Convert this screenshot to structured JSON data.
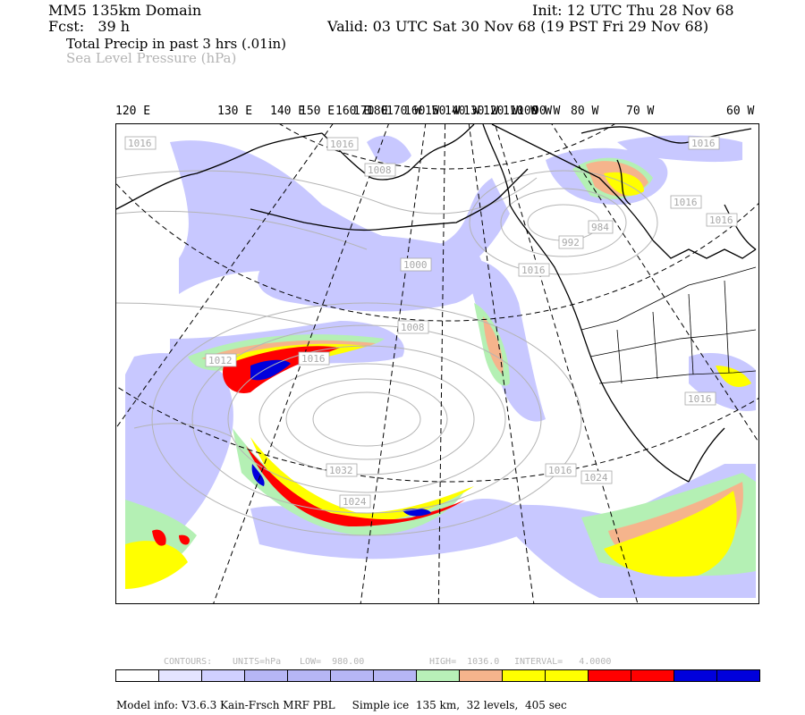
{
  "header": {
    "domain": "MM5 135km Domain",
    "init": "Init: 12 UTC Thu 28 Nov 68",
    "fcst": "Fcst:   39 h",
    "valid": "Valid: 03 UTC Sat 30 Nov 68 (19 PST Fri 29 Nov 68)",
    "field1": "Total Precip in past 3 hrs (.01in)",
    "field2": "Sea Level Pressure (hPa)"
  },
  "map": {
    "longitude_labels": [
      "120 E",
      "130 E",
      "140 E",
      "150 E",
      "160 E",
      "170 E",
      "180",
      "170 W",
      "160 W",
      "150 W",
      "140 W",
      "130 W",
      "120 W",
      "110 W",
      "100 W",
      "90 W",
      "80 W",
      "70 W",
      "60 W"
    ],
    "pressure_labels": [
      "1016",
      "1008",
      "1016",
      "1016",
      "1000",
      "1008",
      "1012",
      "1016",
      "1016",
      "1016",
      "1032",
      "1024",
      "1024",
      "1016",
      "1016",
      "1016",
      "992",
      "984"
    ],
    "precip_colors": {
      "light": "#c8c8ff",
      "mid": "#aaaaf0",
      "green": "#b4f0b4",
      "orange": "#f5b48c",
      "yellow": "#ffff00",
      "red": "#ff0000",
      "blue": "#0000dc"
    }
  },
  "contours_info": {
    "contours": "CONTOURS:",
    "units": "UNITS=hPa",
    "low": "LOW=  980.00",
    "high": "HIGH=  1036.0",
    "interval": "INTERVAL=   4.0000"
  },
  "colorbar": {
    "colors": [
      "#ffffff",
      "#e4e4ff",
      "#d0d0ff",
      "#b6b6f5",
      "#b6b6f5",
      "#b6b6f5",
      "#b6b6f5",
      "#b8f0b8",
      "#f5b48c",
      "#ffff00",
      "#ffff00",
      "#ff0000",
      "#ff0000",
      "#0000dc",
      "#0000dc"
    ]
  },
  "model_info": "Model info: V3.6.3 Kain-Frsch MRF PBL     Simple ice  135 km,  32 levels,  405 sec"
}
